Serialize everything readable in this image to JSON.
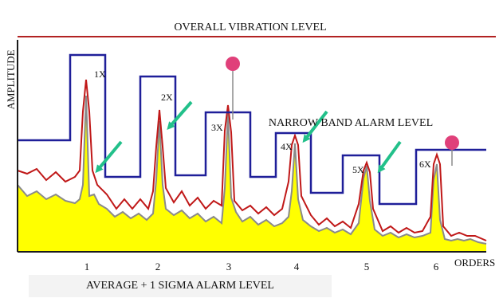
{
  "labels": {
    "overall": "OVERALL VIBRATION LEVEL",
    "narrow_band": "NARROW BAND ALARM LEVEL",
    "average_sigma": "AVERAGE + 1 SIGMA ALARM LEVEL",
    "y_axis": "AMPLITUDE",
    "x_axis": "ORDERS"
  },
  "x_ticks": [
    "1",
    "2",
    "3",
    "4",
    "5",
    "6"
  ],
  "order_labels": [
    "1X",
    "2X",
    "3X",
    "4X",
    "5X",
    "6X"
  ],
  "colors": {
    "overall_line": "#b22222",
    "narrow_band": "#1f1f99",
    "spectrum_fill": "#ffff00",
    "arrow": "#22c08a",
    "marker": "#e0407a",
    "average_line": "#c01818"
  }
}
